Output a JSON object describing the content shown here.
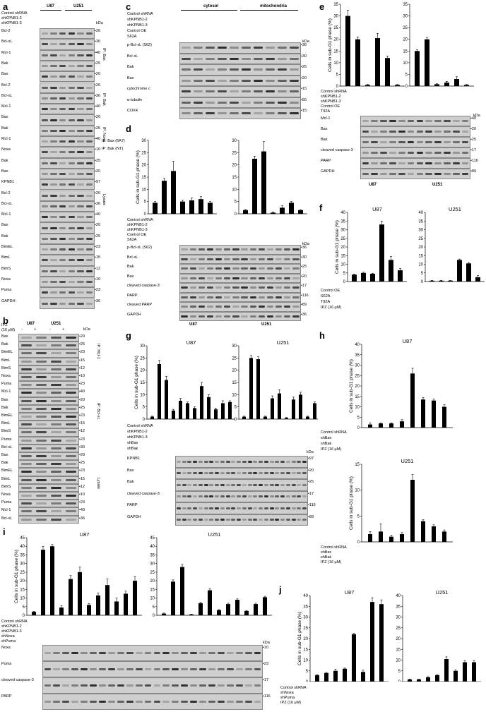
{
  "panels": {
    "a": "a",
    "b": "b",
    "c": "c",
    "d": "d",
    "e": "e",
    "f": "f",
    "g": "g",
    "h": "h",
    "i": "i",
    "j": "j"
  },
  "panel_a": {
    "cells": [
      "U87",
      "U251"
    ],
    "conditions": [
      "Control shRNA",
      "shKPNB1-2",
      "shKPNB1-3"
    ],
    "kda_label": "kDa",
    "rows": [
      "Bcl-2",
      "Bcl-xL",
      "Mcl-1",
      "Bak",
      "Bax",
      "Bcl-2",
      "Bcl-xL",
      "Mcl-1",
      "Bax",
      "Bak",
      "Mcl-1",
      "Noxa",
      "Bak",
      "Bax",
      "KPNB1",
      "Bcl-2",
      "Bcl-xL",
      "Mcl-1",
      "Bax",
      "Bak",
      "BimEL",
      "BimL",
      "BimS",
      "Noxa",
      "Puma",
      "GAPDH"
    ],
    "markers": [
      "26",
      "30",
      "40",
      "25",
      "20",
      "26",
      "36",
      "40",
      "20",
      "25",
      "40",
      "10",
      "25",
      "20",
      "97",
      "26",
      "36",
      "40",
      "20",
      "25",
      "23",
      "15",
      "12",
      "10",
      "23",
      "36"
    ],
    "groups": [
      "IP: Bax",
      "IP: Bak",
      "IP: Noxa",
      "IP: Bax (6A7)",
      "IP: Bak (NT)",
      "Lysate"
    ]
  },
  "panel_b": {
    "cells": [
      "U87",
      "U251"
    ],
    "treatment_label": "IPZ",
    "treatment_dose": "(16 μM)",
    "signs": [
      "-",
      "+",
      "-",
      "+"
    ],
    "kda_label": "kDa",
    "rows": [
      "Bax",
      "Bak",
      "BimEL",
      "BimL",
      "BimS",
      "Noxa",
      "Puma",
      "Mcl-1",
      "Bax",
      "Bak",
      "BimEL",
      "BimL",
      "BimS",
      "Puma",
      "Bcl-xL",
      "Bax",
      "Bak",
      "BimEL",
      "BimL",
      "BimS",
      "Noxa",
      "Puma",
      "Mcl-1",
      "Bcl-xL"
    ],
    "markers": [
      "20",
      "25",
      "23",
      "15",
      "12",
      "10",
      "23",
      "40",
      "20",
      "25",
      "23",
      "15",
      "12",
      "23",
      "30",
      "20",
      "25",
      "23",
      "15",
      "12",
      "10",
      "23",
      "40",
      "36"
    ],
    "groups": [
      "IP: Mcl-1",
      "IP: Bcl-xL",
      "Lysate"
    ]
  },
  "panel_c": {
    "fractions": [
      "cytosol",
      "mitochondria"
    ],
    "conditions": [
      "Control shRNA",
      "shKPNB1-2",
      "shKPNB1-3",
      "Control OE",
      "S62A"
    ],
    "kda_label": "kDa",
    "rows": [
      "p-Bcl-xL (S62)",
      "Bcl-xL",
      "Bak",
      "Bax",
      "cytochrome c",
      "α-tubulin",
      "COX4"
    ],
    "markers": [
      "36",
      "30",
      "25",
      "20",
      "15",
      "55",
      "15"
    ]
  },
  "panel_d": {
    "ylabel": "Cells in sub-G1 phase (%)",
    "ylim": [
      0,
      30
    ],
    "yticks": [
      0,
      5,
      10,
      15,
      20,
      25,
      30
    ],
    "cells": [
      "U87",
      "U251"
    ],
    "conditions": [
      "Control shRNA",
      "shKPNB1-2",
      "shKPNB1-3",
      "Control OE",
      "S62A"
    ],
    "kda_label": "kDa",
    "rows": [
      "p-Bcl-xL (S62)",
      "Bcl-xL",
      "Bak",
      "Bax",
      "cleaved caspase-3",
      "PARP",
      "cleaved PARP",
      "GAPDH"
    ],
    "markers": [
      "36",
      "30",
      "25",
      "20",
      "17",
      "116",
      "89",
      "36"
    ]
  },
  "panel_e": {
    "ylabel": "Cells in sub-G1 phase (%)",
    "ylim": [
      0,
      35
    ],
    "yticks": [
      0,
      5,
      10,
      15,
      20,
      25,
      30,
      35
    ],
    "cells": [
      "U87",
      "U251"
    ],
    "conditions": [
      "Control shRNA",
      "shKPNB1-2",
      "shKPNB1-3",
      "Control OE",
      "T92A"
    ],
    "kda_label": "kDa",
    "rows": [
      "Mcl-1",
      "Bax",
      "Bak",
      "cleaved caspase-3",
      "PARP",
      "GAPDH"
    ],
    "markers": [
      "40",
      "20",
      "25",
      "17",
      "116",
      "89",
      "36"
    ]
  },
  "panel_f": {
    "ylabel": "Cells in sub-G1 phase (%)",
    "ylim": [
      0,
      40
    ],
    "yticks": [
      0,
      5,
      10,
      15,
      20,
      25,
      30,
      35,
      40
    ],
    "cells": [
      "U87",
      "U251"
    ],
    "conditions": [
      "Control OE",
      "S62A",
      "T92A",
      "IPZ (16 μM)"
    ]
  },
  "panel_g": {
    "ylabel": "Cells in sub-G1 phase (%)",
    "ylim": [
      0,
      30
    ],
    "yticks": [
      0,
      5,
      10,
      15,
      20,
      25,
      30
    ],
    "cells": [
      "U87",
      "U251"
    ],
    "conditions": [
      "Control shRNA",
      "shKPNB1-2",
      "shKPNB1-3",
      "shBax",
      "shBak"
    ],
    "kda_label": "kDa",
    "rows": [
      "KPNB1",
      "Bax",
      "Bak",
      "cleaved caspase-3",
      "PARP",
      "GAPDH"
    ],
    "markers": [
      "97",
      "20",
      "25",
      "17",
      "116",
      "89",
      "36"
    ]
  },
  "panel_h": {
    "ylabel": "Cells in sub-G1 phase (%)",
    "ylim": [
      0,
      40
    ],
    "yticks": [
      0,
      5,
      10,
      15,
      20,
      25,
      30,
      35,
      40
    ],
    "cells": [
      "U87",
      "U251"
    ],
    "conditions": [
      "Control shRNA",
      "shBax",
      "shBak",
      "IPZ (16 μM)"
    ]
  },
  "panel_i": {
    "ylabel": "Cells in sub-G1 phase (%)",
    "ylim": [
      0,
      45
    ],
    "yticks": [
      0,
      5,
      10,
      15,
      20,
      25,
      30,
      35,
      40,
      45
    ],
    "cells": [
      "U87",
      "U251"
    ],
    "conditions": [
      "Control shRNA",
      "shKPNB1-2",
      "shKPNB1-3",
      "shNoxa",
      "shPuma"
    ],
    "kda_label": "kDa",
    "rows": [
      "Noxa",
      "Puma",
      "cleaved caspase-3",
      "PARP"
    ],
    "markers": [
      "10",
      "23",
      "17",
      "116",
      "89",
      "36"
    ]
  },
  "panel_j": {
    "ylabel": "Cells in sub-G1 phase (%)",
    "ylim": [
      0,
      40
    ],
    "yticks": [
      0,
      5,
      10,
      15,
      20,
      25,
      30,
      35,
      40
    ],
    "cells": [
      "U87",
      "U251"
    ],
    "conditions": [
      "Control shRNA",
      "shNoxa",
      "shPuma",
      "IPZ (16 μM)"
    ]
  },
  "chart_data": [
    {
      "panel": "d",
      "type": "bar",
      "ylabel": "Cells in sub-G1 phase (%)",
      "ylim": [
        0,
        30
      ],
      "series": [
        {
          "name": "U87",
          "values": [
            4.5,
            13.5,
            17.5,
            5.0,
            5.5,
            6.0,
            4.5
          ],
          "errors": [
            0.5,
            1.0,
            4.0,
            0.5,
            1.0,
            1.0,
            0.5
          ]
        },
        {
          "name": "U251",
          "values": [
            1.5,
            22.5,
            25.5,
            0.5,
            2.5,
            4.5,
            1.5
          ],
          "errors": [
            0.3,
            1.0,
            4.0,
            0.2,
            0.8,
            0.5,
            0.2
          ]
        }
      ]
    },
    {
      "panel": "e",
      "type": "bar",
      "ylabel": "Cells in sub-G1 phase (%)",
      "ylim": [
        0,
        35
      ],
      "series": [
        {
          "name": "U87",
          "values": [
            30.0,
            20.0,
            0.5,
            20.5,
            12.0,
            0.5
          ],
          "errors": [
            2.5,
            1.0,
            0.2,
            2.0,
            0.8,
            0.2
          ]
        },
        {
          "name": "U251",
          "values": [
            15.0,
            20.0,
            0.8,
            1.5,
            3.0,
            0.5
          ],
          "errors": [
            0.5,
            0.8,
            0.3,
            0.5,
            1.0,
            0.2
          ]
        }
      ]
    },
    {
      "panel": "f",
      "type": "bar",
      "ylabel": "Cells in sub-G1 phase (%)",
      "ylim": [
        0,
        40
      ],
      "series": [
        {
          "name": "U87",
          "values": [
            4.0,
            5.0,
            4.5,
            33.0,
            12.5,
            6.5
          ],
          "errors": [
            0.3,
            0.4,
            0.3,
            2.0,
            2.0,
            1.0
          ]
        },
        {
          "name": "U251",
          "values": [
            0.5,
            0.5,
            0.5,
            12.5,
            10.5,
            2.5
          ],
          "errors": [
            0.2,
            0.2,
            0.2,
            0.5,
            0.5,
            1.0
          ]
        }
      ]
    },
    {
      "panel": "g",
      "type": "bar",
      "ylabel": "Cells in sub-G1 phase (%)",
      "ylim": [
        0,
        30
      ],
      "series": [
        {
          "name": "U87",
          "values": [
            1.0,
            22.5,
            16.0,
            3.5,
            7.5,
            6.5,
            4.5,
            13.5,
            9.0,
            4.0,
            6.5,
            7.0
          ],
          "errors": [
            0.2,
            1.5,
            1.5,
            0.5,
            1.0,
            0.5,
            0.5,
            1.5,
            1.0,
            0.5,
            1.0,
            0.5
          ]
        },
        {
          "name": "U251",
          "values": [
            1.0,
            25.0,
            24.5,
            1.0,
            8.5,
            10.5,
            0.5,
            8.0,
            10.0,
            1.0,
            6.5,
            7.5
          ],
          "errors": [
            0.2,
            1.0,
            1.0,
            0.2,
            1.0,
            1.5,
            0.2,
            1.0,
            1.0,
            0.2,
            0.5,
            0.5
          ]
        }
      ]
    },
    {
      "panel": "h",
      "type": "bar",
      "ylabel": "Cells in sub-G1 phase (%)",
      "ylim": [
        0,
        40
      ],
      "series": [
        {
          "name": "U87",
          "values": [
            1.5,
            2.0,
            2.0,
            3.0,
            26.0,
            13.5,
            13.0,
            10.0
          ],
          "errors": [
            0.8,
            0.3,
            0.3,
            0.8,
            2.5,
            1.0,
            0.8,
            1.0
          ]
        },
        {
          "name": "U251",
          "values": [
            1.5,
            2.0,
            1.0,
            1.5,
            12.0,
            4.0,
            3.0,
            2.0
          ],
          "errors": [
            0.5,
            1.5,
            0.3,
            0.3,
            1.0,
            0.3,
            0.3,
            0.3
          ]
        }
      ]
    },
    {
      "panel": "i",
      "type": "bar",
      "ylabel": "Cells in sub-G1 phase (%)",
      "ylim": [
        0,
        45
      ],
      "series": [
        {
          "name": "U87",
          "values": [
            2.0,
            38.0,
            40.0,
            4.5,
            21.0,
            25.0,
            6.0,
            11.5,
            17.5,
            8.0,
            12.5,
            20.0
          ],
          "errors": [
            0.3,
            2.0,
            1.0,
            1.0,
            2.0,
            3.0,
            0.8,
            1.5,
            3.5,
            2.0,
            1.5,
            2.5
          ]
        },
        {
          "name": "U251",
          "values": [
            1.0,
            19.5,
            28.0,
            0.5,
            7.0,
            14.5,
            3.0,
            6.5,
            9.0,
            2.5,
            6.5,
            10.5
          ],
          "errors": [
            0.3,
            1.0,
            1.5,
            0.2,
            0.5,
            1.0,
            0.3,
            0.5,
            0.5,
            0.3,
            0.5,
            0.5
          ]
        }
      ]
    },
    {
      "panel": "j",
      "type": "bar",
      "ylabel": "Cells in sub-G1 phase (%)",
      "ylim": [
        0,
        40
      ],
      "series": [
        {
          "name": "U87",
          "values": [
            3.0,
            4.0,
            5.0,
            6.0,
            22.0,
            4.5,
            37.0,
            36.0
          ],
          "errors": [
            0.3,
            0.3,
            0.8,
            0.3,
            0.5,
            0.8,
            2.0,
            2.0
          ]
        },
        {
          "name": "U251",
          "values": [
            1.0,
            1.0,
            2.0,
            3.0,
            10.5,
            5.0,
            9.0,
            9.0
          ],
          "errors": [
            0.2,
            0.2,
            0.3,
            0.3,
            1.0,
            0.5,
            0.8,
            0.8
          ]
        }
      ]
    }
  ]
}
